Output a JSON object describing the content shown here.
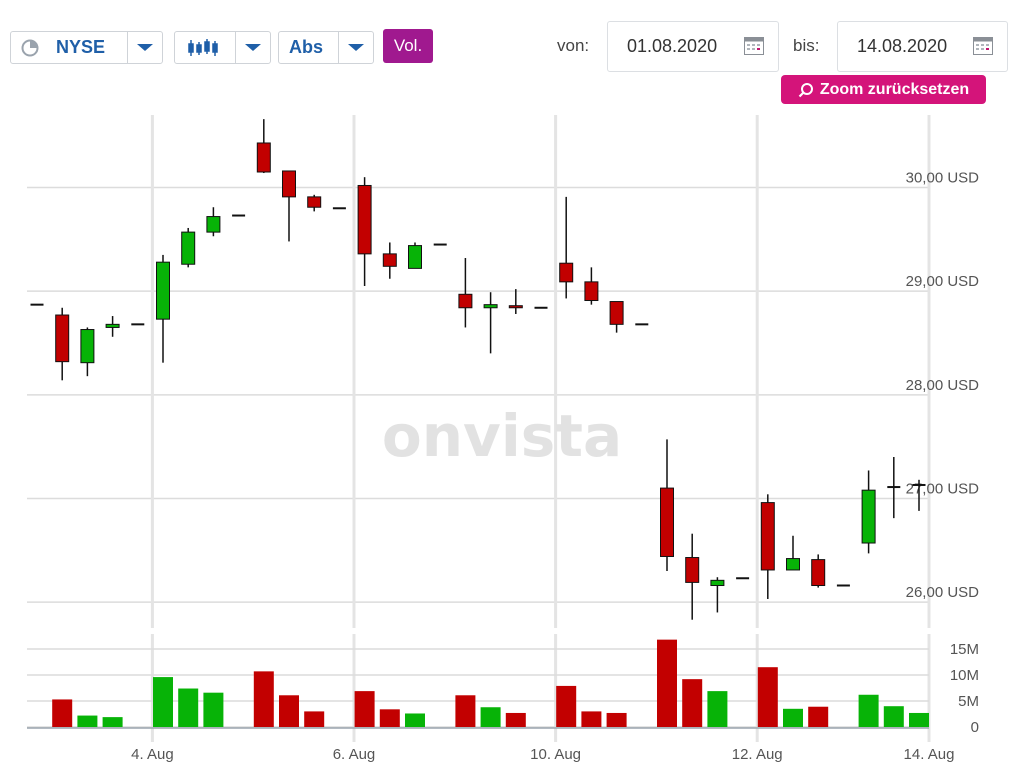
{
  "toolbar": {
    "exchange": "NYSE",
    "mode": "Abs",
    "volume_label": "Vol.",
    "from_label": "von:",
    "from_date": "01.08.2020",
    "to_label": "bis:",
    "to_date": "14.08.2020",
    "zoom_reset": "Zoom zurücksetzen"
  },
  "watermark": "onvista",
  "colors": {
    "up": "#07b307",
    "down": "#c20000",
    "accent": "#d4147a",
    "vol_button": "#a0198f",
    "link": "#1f5fa8"
  },
  "chart_data": {
    "type": "candlestick",
    "currency": "USD",
    "ylim": [
      25.75,
      30.7
    ],
    "y_ticks": [
      26,
      27,
      28,
      29,
      30
    ],
    "y_tick_labels": [
      "26,00 USD",
      "27,00 USD",
      "28,00 USD",
      "29,00 USD",
      "30,00 USD"
    ],
    "x_labels": [
      "4. Aug",
      "6. Aug",
      "10. Aug",
      "12. Aug",
      "14. Aug"
    ],
    "x_label_dates": [
      "2020-08-04",
      "2020-08-06",
      "2020-08-10",
      "2020-08-12",
      "2020-08-14"
    ],
    "grid": true,
    "candles": [
      {
        "t": "2020-08-03 15:30",
        "o": 28.87,
        "h": 28.87,
        "l": 28.87,
        "c": 28.87
      },
      {
        "t": "2020-08-03 16:30",
        "o": 28.77,
        "h": 28.84,
        "l": 28.14,
        "c": 28.32
      },
      {
        "t": "2020-08-03 17:30",
        "o": 28.31,
        "h": 28.65,
        "l": 28.18,
        "c": 28.63
      },
      {
        "t": "2020-08-03 18:30",
        "o": 28.65,
        "h": 28.76,
        "l": 28.56,
        "c": 28.68
      },
      {
        "t": "2020-08-03 19:30",
        "o": 28.68,
        "h": 28.68,
        "l": 28.68,
        "c": 28.68
      },
      {
        "t": "2020-08-04 15:30",
        "o": 28.73,
        "h": 29.35,
        "l": 28.31,
        "c": 29.28
      },
      {
        "t": "2020-08-04 16:30",
        "o": 29.26,
        "h": 29.61,
        "l": 29.23,
        "c": 29.57
      },
      {
        "t": "2020-08-04 17:30",
        "o": 29.57,
        "h": 29.81,
        "l": 29.53,
        "c": 29.72
      },
      {
        "t": "2020-08-04 18:30",
        "o": 29.73,
        "h": 29.73,
        "l": 29.73,
        "c": 29.73
      },
      {
        "t": "2020-08-05 15:30",
        "o": 30.43,
        "h": 30.66,
        "l": 30.14,
        "c": 30.15
      },
      {
        "t": "2020-08-05 16:30",
        "o": 30.16,
        "h": 30.16,
        "l": 29.48,
        "c": 29.91
      },
      {
        "t": "2020-08-05 17:30",
        "o": 29.91,
        "h": 29.93,
        "l": 29.77,
        "c": 29.81
      },
      {
        "t": "2020-08-05 18:30",
        "o": 29.8,
        "h": 29.8,
        "l": 29.8,
        "c": 29.8
      },
      {
        "t": "2020-08-06 15:30",
        "o": 30.02,
        "h": 30.1,
        "l": 29.05,
        "c": 29.36
      },
      {
        "t": "2020-08-06 16:30",
        "o": 29.36,
        "h": 29.47,
        "l": 29.12,
        "c": 29.24
      },
      {
        "t": "2020-08-06 17:30",
        "o": 29.22,
        "h": 29.47,
        "l": 29.22,
        "c": 29.44
      },
      {
        "t": "2020-08-06 18:30",
        "o": 29.45,
        "h": 29.45,
        "l": 29.45,
        "c": 29.45
      },
      {
        "t": "2020-08-07 15:30",
        "o": 28.97,
        "h": 29.32,
        "l": 28.65,
        "c": 28.84
      },
      {
        "t": "2020-08-07 16:30",
        "o": 28.84,
        "h": 28.99,
        "l": 28.4,
        "c": 28.87
      },
      {
        "t": "2020-08-07 17:30",
        "o": 28.86,
        "h": 29.02,
        "l": 28.78,
        "c": 28.84
      },
      {
        "t": "2020-08-07 18:30",
        "o": 28.84,
        "h": 28.84,
        "l": 28.84,
        "c": 28.84
      },
      {
        "t": "2020-08-10 15:30",
        "o": 29.27,
        "h": 29.91,
        "l": 28.93,
        "c": 29.09
      },
      {
        "t": "2020-08-10 16:30",
        "o": 29.09,
        "h": 29.23,
        "l": 28.87,
        "c": 28.91
      },
      {
        "t": "2020-08-10 17:30",
        "o": 28.9,
        "h": 28.9,
        "l": 28.6,
        "c": 28.68
      },
      {
        "t": "2020-08-10 18:30",
        "o": 28.68,
        "h": 28.68,
        "l": 28.68,
        "c": 28.68
      },
      {
        "t": "2020-08-11 15:30",
        "o": 27.1,
        "h": 27.57,
        "l": 26.3,
        "c": 26.44
      },
      {
        "t": "2020-08-11 16:30",
        "o": 26.43,
        "h": 26.66,
        "l": 25.83,
        "c": 26.19
      },
      {
        "t": "2020-08-11 17:30",
        "o": 26.16,
        "h": 26.24,
        "l": 25.9,
        "c": 26.21
      },
      {
        "t": "2020-08-11 18:30",
        "o": 26.23,
        "h": 26.23,
        "l": 26.23,
        "c": 26.23
      },
      {
        "t": "2020-08-12 15:30",
        "o": 26.96,
        "h": 27.04,
        "l": 26.03,
        "c": 26.31
      },
      {
        "t": "2020-08-12 16:30",
        "o": 26.31,
        "h": 26.64,
        "l": 26.31,
        "c": 26.42
      },
      {
        "t": "2020-08-12 17:30",
        "o": 26.41,
        "h": 26.46,
        "l": 26.14,
        "c": 26.16
      },
      {
        "t": "2020-08-12 18:30",
        "o": 26.16,
        "h": 26.16,
        "l": 26.16,
        "c": 26.16
      },
      {
        "t": "2020-08-13 15:30",
        "o": 26.57,
        "h": 27.27,
        "l": 26.47,
        "c": 27.08
      },
      {
        "t": "2020-08-13 16:30",
        "o": 27.11,
        "h": 27.4,
        "l": 26.81,
        "c": 27.11
      },
      {
        "t": "2020-08-13 17:30",
        "o": 27.13,
        "h": 27.18,
        "l": 26.88,
        "c": 27.13
      }
    ],
    "volume_axis": {
      "ylim": [
        0,
        17.5
      ],
      "ticks": [
        0,
        5,
        10,
        15
      ],
      "tick_labels": [
        "0",
        "5M",
        "10M",
        "15M"
      ]
    },
    "volume_millions": [
      0,
      5.3,
      2.2,
      1.9,
      0,
      9.6,
      7.4,
      6.6,
      0,
      10.7,
      6.1,
      3.0,
      0,
      6.9,
      3.4,
      2.6,
      0,
      6.1,
      3.8,
      2.7,
      0,
      7.9,
      3.0,
      2.7,
      0,
      16.8,
      9.2,
      6.9,
      0,
      11.5,
      3.5,
      3.9,
      0,
      6.2,
      4.0,
      2.7
    ]
  }
}
